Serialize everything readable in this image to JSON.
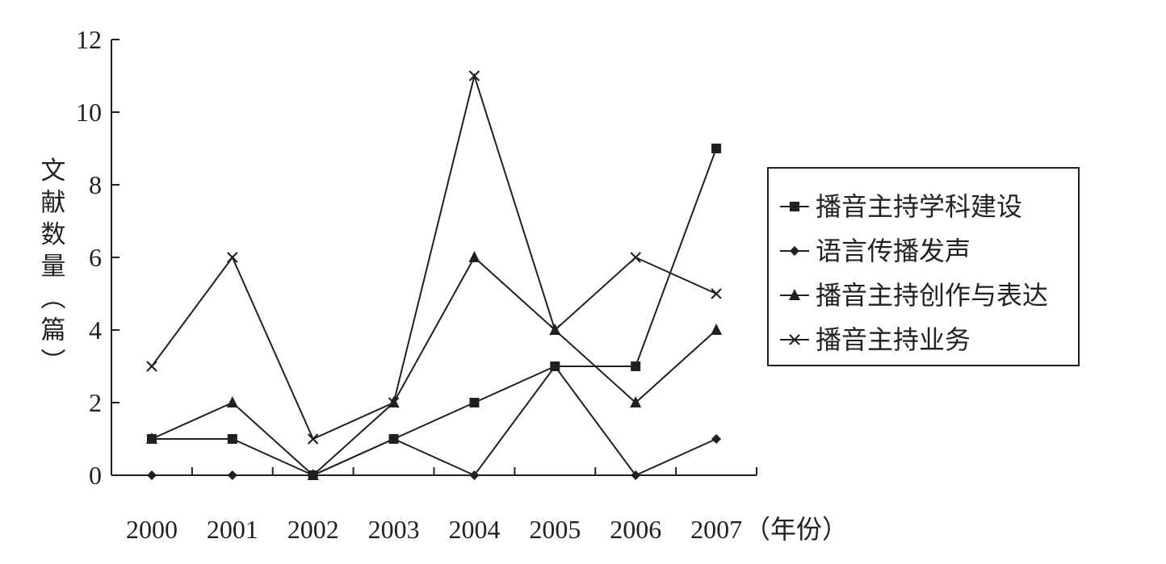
{
  "chart_data": {
    "type": "line",
    "categories": [
      "2000",
      "2001",
      "2002",
      "2003",
      "2004",
      "2005",
      "2006",
      "2007"
    ],
    "xunit": "（年份）",
    "ylabel": "文献数量（篇）",
    "ylim": [
      0,
      12
    ],
    "yticks": [
      "0",
      "2",
      "4",
      "6",
      "8",
      "10",
      "12"
    ],
    "grid": false,
    "legend_position": "right",
    "series": [
      {
        "name": "播音主持学科建设",
        "marker": "square",
        "values": [
          1,
          1,
          0,
          1,
          2,
          3,
          3,
          9
        ]
      },
      {
        "name": "语言传播发声",
        "marker": "diamond",
        "values": [
          0,
          0,
          0,
          1,
          0,
          3,
          0,
          1
        ]
      },
      {
        "name": "播音主持创作与表达",
        "marker": "triangle",
        "values": [
          1,
          2,
          0,
          2,
          6,
          4,
          2,
          4
        ]
      },
      {
        "name": "播音主持业务",
        "marker": "x",
        "values": [
          3,
          6,
          1,
          2,
          11,
          4,
          6,
          5
        ]
      }
    ]
  }
}
